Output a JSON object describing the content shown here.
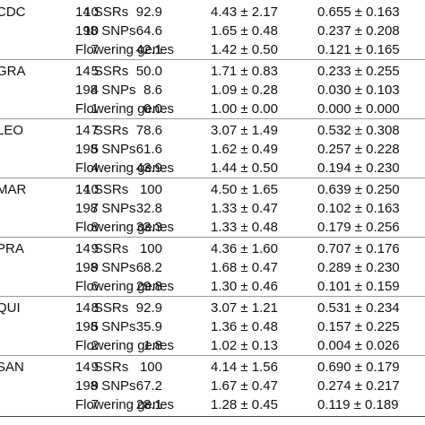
{
  "table": {
    "groups": [
      {
        "population": "CDC",
        "rows": [
          {
            "marker": "14 SSRs",
            "loci": "10",
            "percent": "92.9",
            "na": "4.43 ± 2.17",
            "he": "0.655 ± 0.163"
          },
          {
            "marker": "198 SNPs",
            "loci": "10",
            "percent": "64.6",
            "na": "1.65 ± 0.48",
            "he": "0.237 ± 0.208"
          },
          {
            "marker": "Flowering genes",
            "loci": "7",
            "percent": "42.1",
            "na": "1.42 ± 0.50",
            "he": "0.121 ± 0.165"
          }
        ]
      },
      {
        "population": "GRA",
        "rows": [
          {
            "marker": "14 SSRs",
            "loci": "5",
            "percent": "50.0",
            "na": "1.71 ± 0.83",
            "he": "0.233 ± 0.255"
          },
          {
            "marker": "198 SNPs",
            "loci": "4",
            "percent": "8.6",
            "na": "1.09 ± 0.28",
            "he": "0.030 ± 0.103"
          },
          {
            "marker": "Flowering genes",
            "loci": "1",
            "percent": "0.0",
            "na": "1.00 ± 0.00",
            "he": "0.000 ± 0.000"
          }
        ]
      },
      {
        "population": "LEO",
        "rows": [
          {
            "marker": "14 SSRs",
            "loci": "7",
            "percent": "78.6",
            "na": "3.07 ± 1.49",
            "he": "0.532 ± 0.308"
          },
          {
            "marker": "198 SNPs",
            "loci": "5",
            "percent": "61.6",
            "na": "1.62 ± 0.49",
            "he": "0.257 ± 0.228"
          },
          {
            "marker": "Flowering genes",
            "loci": "4",
            "percent": "43.9",
            "na": "1.44 ± 0.50",
            "he": "0.194 ± 0.230"
          }
        ]
      },
      {
        "population": "MAR",
        "rows": [
          {
            "marker": "14 SSRs",
            "loci": "10",
            "percent": "100",
            "na": "4.50 ± 1.65",
            "he": "0.639 ± 0.250"
          },
          {
            "marker": "198 SNPs",
            "loci": "7",
            "percent": "32.8",
            "na": "1.33 ± 0.47",
            "he": "0.102 ± 0.163"
          },
          {
            "marker": "Flowering genes",
            "loci": "8",
            "percent": "33.3",
            "na": "1.33 ± 0.48",
            "he": "0.179 ± 0.256"
          }
        ]
      },
      {
        "population": "PRA",
        "rows": [
          {
            "marker": "14 SSRs",
            "loci": "9",
            "percent": "100",
            "na": "4.36 ± 1.60",
            "he": "0.707 ± 0.176"
          },
          {
            "marker": "198 SNPs",
            "loci": "9",
            "percent": "68.2",
            "na": "1.68 ± 0.47",
            "he": "0.289 ± 0.230"
          },
          {
            "marker": "Flowering genes",
            "loci": "6",
            "percent": "29.8",
            "na": "1.30 ± 0.46",
            "he": "0.101 ± 0.159"
          }
        ]
      },
      {
        "population": "QUI",
        "rows": [
          {
            "marker": "14 SSRs",
            "loci": "8",
            "percent": "92.9",
            "na": "3.07 ± 1.21",
            "he": "0.531 ± 0.234"
          },
          {
            "marker": "198 SNPs",
            "loci": "5",
            "percent": "35.9",
            "na": "1.36 ± 0.48",
            "he": "0.157 ± 0.225"
          },
          {
            "marker": "Flowering genes",
            "loci": "2",
            "percent": "1.8",
            "na": "1.02 ± 0.13",
            "he": "0.004 ± 0.026"
          }
        ]
      },
      {
        "population": "SAN",
        "rows": [
          {
            "marker": "14 SSRs",
            "loci": "9",
            "percent": "100",
            "na": "4.14 ± 1.56",
            "he": "0.690 ± 0.179"
          },
          {
            "marker": "198 SNPs",
            "loci": "9",
            "percent": "67.2",
            "na": "1.67 ± 0.47",
            "he": "0.274 ± 0.217"
          },
          {
            "marker": "Flowering genes",
            "loci": "7",
            "percent": "28.1",
            "na": "1.28 ± 0.45",
            "he": "0.119 ± 0.189"
          }
        ]
      }
    ]
  }
}
